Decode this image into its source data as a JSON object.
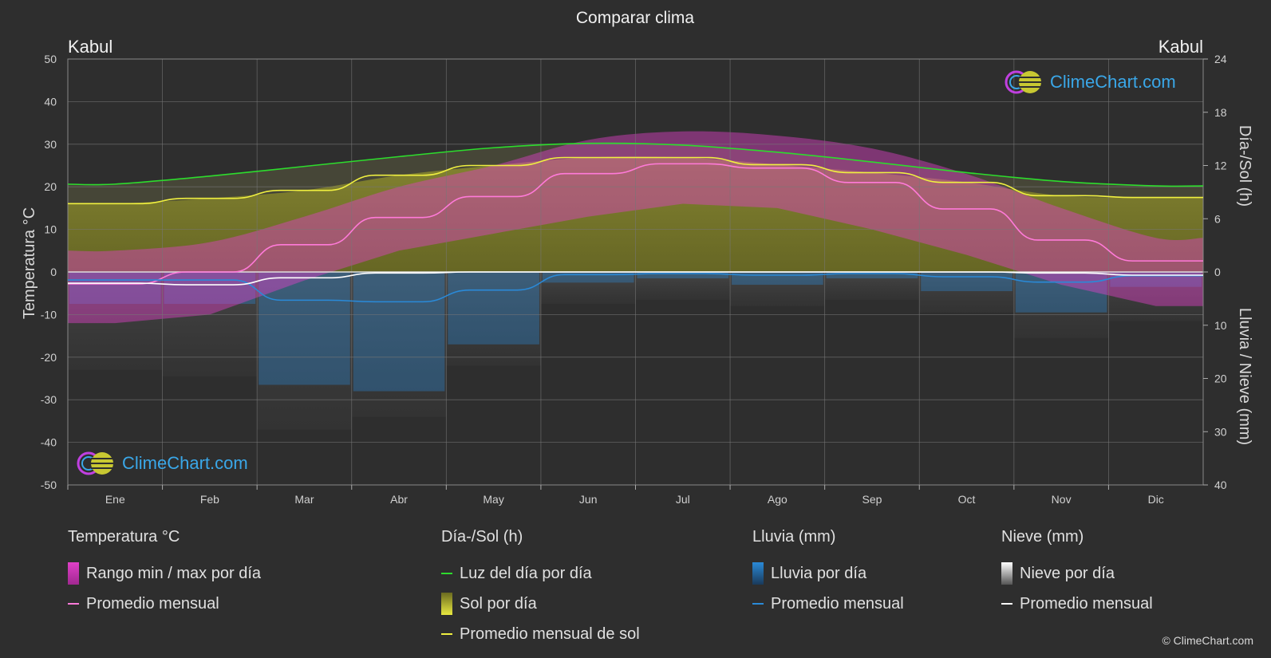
{
  "title": "Comparar clima",
  "city_left": "Kabul",
  "city_right": "Kabul",
  "axis_left_label": "Temperatura °C",
  "axis_right_top_label": "Día-/Sol (h)",
  "axis_right_bottom_label": "Lluvia / Nieve (mm)",
  "logo_text": "ClimeChart.com",
  "copyright": "© ClimeChart.com",
  "legend": {
    "temp": {
      "header": "Temperatura °C",
      "range": "Rango min / max por día",
      "avg": "Promedio mensual"
    },
    "sun": {
      "header": "Día-/Sol (h)",
      "daylight": "Luz del día por día",
      "sun_day": "Sol por día",
      "sun_avg": "Promedio mensual de sol"
    },
    "rain": {
      "header": "Lluvia (mm)",
      "rain_day": "Lluvia por día",
      "avg": "Promedio mensual"
    },
    "snow": {
      "header": "Nieve (mm)",
      "snow_day": "Nieve por día",
      "avg": "Promedio mensual"
    }
  },
  "colors": {
    "background": "#2e2e2e",
    "temp_range": "#e040c8",
    "temp_avg": "#ff7ad9",
    "daylight": "#2ddc2d",
    "sunshine": "#c8c832",
    "sun_avg": "#f0f040",
    "rain": "#2a8ad8",
    "snow": "#ffffff",
    "logo": "#3aa7e8"
  },
  "chart_data": {
    "type": "line",
    "months": [
      "Ene",
      "Feb",
      "Mar",
      "Abr",
      "May",
      "Jun",
      "Jul",
      "Ago",
      "Sep",
      "Oct",
      "Nov",
      "Dic"
    ],
    "left_axis": {
      "label": "Temperatura °C",
      "range": [
        -50,
        50
      ],
      "ticks": [
        50,
        40,
        30,
        20,
        10,
        0,
        -10,
        -20,
        -30,
        -40,
        -50
      ]
    },
    "right_top_axis": {
      "label": "Día-/Sol (h)",
      "range": [
        0,
        24
      ],
      "ticks": [
        24,
        18,
        12,
        6,
        0
      ]
    },
    "right_bottom_axis": {
      "label": "Lluvia / Nieve (mm)",
      "range": [
        0,
        40
      ],
      "ticks": [
        0,
        10,
        20,
        30,
        40
      ]
    },
    "series": [
      {
        "name": "Luz del día por día",
        "axis": "sun",
        "values": [
          9.9,
          10.8,
          11.9,
          13.0,
          14.0,
          14.5,
          14.3,
          13.5,
          12.4,
          11.2,
          10.2,
          9.7
        ]
      },
      {
        "name": "Promedio mensual de sol",
        "axis": "sun",
        "values": [
          7.7,
          8.3,
          9.2,
          10.9,
          12.0,
          12.9,
          12.9,
          12.1,
          11.2,
          10.1,
          8.6,
          8.4
        ]
      },
      {
        "name": "Promedio mensual",
        "kind": "temperature",
        "axis": "temp",
        "values": [
          -2.8,
          0.0,
          6.4,
          12.8,
          17.7,
          23.1,
          25.4,
          24.4,
          21.0,
          14.8,
          7.5,
          2.6
        ]
      },
      {
        "name": "Temperatura máxima diaria",
        "axis": "temp",
        "values": [
          5,
          7,
          13,
          20,
          25,
          31,
          33,
          32,
          29,
          23,
          15,
          8
        ]
      },
      {
        "name": "Temperatura mínima diaria",
        "axis": "temp",
        "values": [
          -12,
          -10,
          -2,
          5,
          9,
          13,
          16,
          15,
          10,
          4,
          -3,
          -8
        ]
      },
      {
        "name": "Promedio mensual",
        "kind": "rain",
        "axis": "precip",
        "values": [
          1.5,
          1.5,
          5.3,
          5.6,
          3.4,
          0.5,
          0.3,
          0.6,
          0.3,
          0.9,
          1.9,
          0.7
        ]
      },
      {
        "name": "Promedio mensual",
        "kind": "snow",
        "axis": "precip",
        "values": [
          2.1,
          2.4,
          1.1,
          0.2,
          0.0,
          0.0,
          0.0,
          0.0,
          0.0,
          0.0,
          0.2,
          0.6
        ]
      }
    ]
  }
}
